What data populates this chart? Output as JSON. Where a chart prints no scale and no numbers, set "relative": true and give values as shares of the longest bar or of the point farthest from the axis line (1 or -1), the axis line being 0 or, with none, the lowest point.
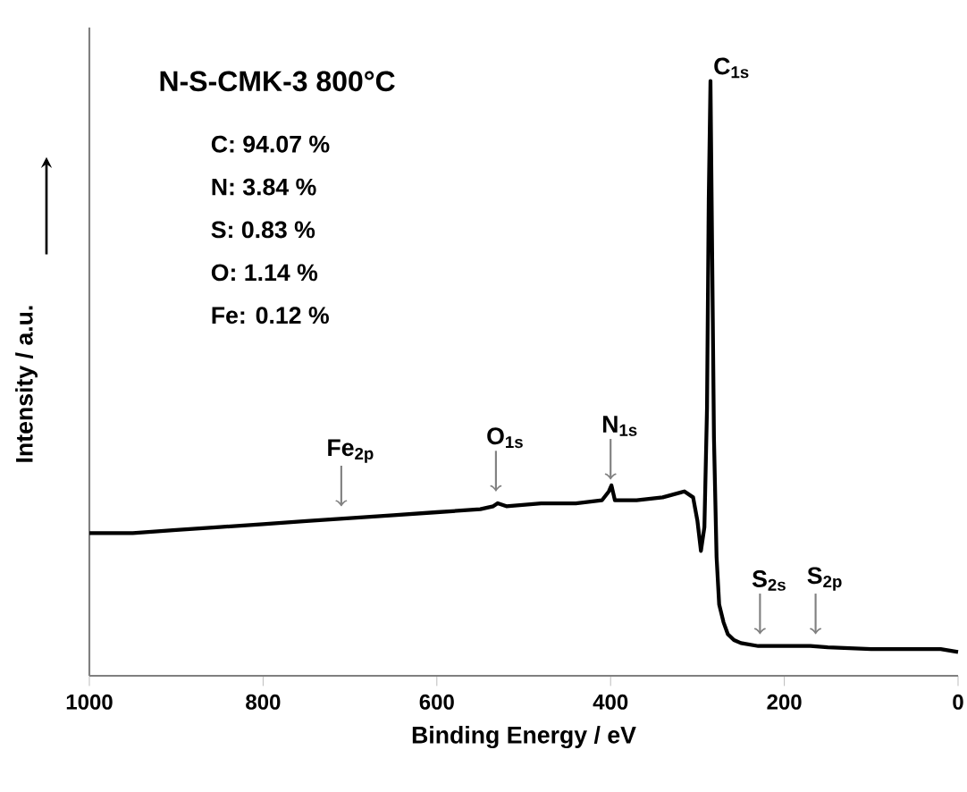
{
  "chart_data": {
    "type": "line",
    "title": "N-S-CMK-3 800°C",
    "xlabel": "Binding Energy / eV",
    "ylabel": "Intensity / a.u.",
    "relative": true,
    "xlim": [
      1000,
      0
    ],
    "xticks": [
      1000,
      800,
      600,
      400,
      200,
      0
    ],
    "grid": false,
    "marker": "none",
    "line_style": "solid",
    "x": [
      1000,
      950,
      900,
      850,
      800,
      750,
      700,
      650,
      600,
      550,
      535,
      530,
      520,
      480,
      440,
      410,
      402,
      399,
      395,
      370,
      340,
      315,
      305,
      300,
      296,
      292,
      289,
      287,
      285,
      283,
      281,
      278,
      275,
      270,
      265,
      258,
      250,
      230,
      200,
      170,
      150,
      100,
      50,
      20,
      0
    ],
    "series": [
      {
        "color": "#000000",
        "values": [
          0.24,
          0.24,
          0.245,
          0.25,
          0.255,
          0.26,
          0.265,
          0.27,
          0.275,
          0.28,
          0.285,
          0.29,
          0.285,
          0.29,
          0.29,
          0.295,
          0.31,
          0.32,
          0.295,
          0.295,
          0.3,
          0.31,
          0.3,
          0.26,
          0.21,
          0.25,
          0.45,
          0.8,
          1.0,
          0.7,
          0.4,
          0.2,
          0.12,
          0.09,
          0.07,
          0.06,
          0.055,
          0.05,
          0.05,
          0.05,
          0.048,
          0.045,
          0.045,
          0.045,
          0.04
        ]
      }
    ],
    "annotations": [
      "C: 94.07 %",
      "N: 3.84 %",
      "S: 0.83 %",
      "O: 1.14 %",
      "Fe: 0.12 %",
      {
        "text": "Fe$_{2p}$",
        "x": 710,
        "y": 0.265
      },
      {
        "text": "O$_{1s}$",
        "x": 532,
        "y": 0.29
      },
      {
        "text": "N$_{1s}$",
        "x": 400,
        "y": 0.31
      },
      {
        "text": "C$_{1s}$",
        "x": 285,
        "y": 1.0
      },
      {
        "text": "S$_{2s}$",
        "x": 228,
        "y": 0.05
      },
      {
        "text": "S$_{2p}$",
        "x": 164,
        "y": 0.05
      }
    ]
  }
}
